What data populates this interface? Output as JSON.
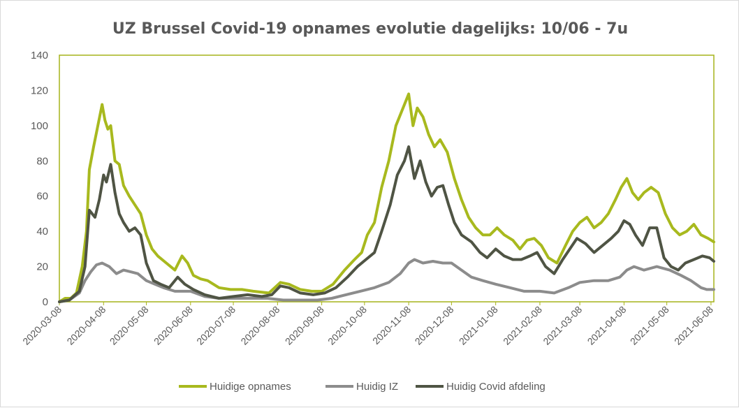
{
  "chart_data": {
    "type": "line",
    "title": "UZ Brussel Covid-19 opnames evolutie dagelijks: 10/06 - 7u",
    "xlabel": "",
    "ylabel": "",
    "x_range": [
      "2020-03-08",
      "2021-06-10"
    ],
    "ylim": [
      0,
      140
    ],
    "yticks": [
      0,
      20,
      40,
      60,
      80,
      100,
      120,
      140
    ],
    "xticks": [
      "2020-03-08",
      "2020-04-08",
      "2020-05-08",
      "2020-06-08",
      "2020-07-08",
      "2020-08-08",
      "2020-09-08",
      "2020-10-08",
      "2020-11-08",
      "2020-12-08",
      "2021-01-08",
      "2021-02-08",
      "2021-03-08",
      "2021-04-08",
      "2021-05-08",
      "2021-06-08"
    ],
    "grid": false,
    "legend_position": "bottom",
    "colors": {
      "plot_border": "#a6b31a",
      "axis_text": "#595959"
    },
    "series": [
      {
        "name": "Huidige opnames",
        "color": "#a8b91e",
        "points": [
          [
            "2020-03-08",
            0
          ],
          [
            "2020-03-12",
            2
          ],
          [
            "2020-03-16",
            2
          ],
          [
            "2020-03-20",
            5
          ],
          [
            "2020-03-24",
            20
          ],
          [
            "2020-03-27",
            40
          ],
          [
            "2020-03-29",
            75
          ],
          [
            "2020-04-01",
            88
          ],
          [
            "2020-04-04",
            100
          ],
          [
            "2020-04-07",
            112
          ],
          [
            "2020-04-09",
            103
          ],
          [
            "2020-04-11",
            98
          ],
          [
            "2020-04-13",
            100
          ],
          [
            "2020-04-16",
            80
          ],
          [
            "2020-04-19",
            78
          ],
          [
            "2020-04-22",
            66
          ],
          [
            "2020-04-26",
            60
          ],
          [
            "2020-04-30",
            55
          ],
          [
            "2020-05-04",
            50
          ],
          [
            "2020-05-08",
            38
          ],
          [
            "2020-05-12",
            30
          ],
          [
            "2020-05-16",
            26
          ],
          [
            "2020-05-22",
            22
          ],
          [
            "2020-05-28",
            18
          ],
          [
            "2020-06-02",
            26
          ],
          [
            "2020-06-06",
            22
          ],
          [
            "2020-06-10",
            15
          ],
          [
            "2020-06-15",
            13
          ],
          [
            "2020-06-20",
            12
          ],
          [
            "2020-06-28",
            8
          ],
          [
            "2020-07-06",
            7
          ],
          [
            "2020-07-14",
            7
          ],
          [
            "2020-07-22",
            6
          ],
          [
            "2020-08-02",
            5
          ],
          [
            "2020-08-10",
            11
          ],
          [
            "2020-08-16",
            10
          ],
          [
            "2020-08-24",
            7
          ],
          [
            "2020-09-01",
            6
          ],
          [
            "2020-09-08",
            6
          ],
          [
            "2020-09-16",
            10
          ],
          [
            "2020-09-24",
            18
          ],
          [
            "2020-10-01",
            24
          ],
          [
            "2020-10-06",
            28
          ],
          [
            "2020-10-10",
            38
          ],
          [
            "2020-10-15",
            45
          ],
          [
            "2020-10-20",
            65
          ],
          [
            "2020-10-25",
            80
          ],
          [
            "2020-10-30",
            100
          ],
          [
            "2020-11-04",
            110
          ],
          [
            "2020-11-08",
            118
          ],
          [
            "2020-11-11",
            100
          ],
          [
            "2020-11-14",
            110
          ],
          [
            "2020-11-18",
            105
          ],
          [
            "2020-11-22",
            95
          ],
          [
            "2020-11-26",
            88
          ],
          [
            "2020-11-30",
            92
          ],
          [
            "2020-12-05",
            85
          ],
          [
            "2020-12-10",
            70
          ],
          [
            "2020-12-15",
            58
          ],
          [
            "2020-12-20",
            48
          ],
          [
            "2020-12-25",
            42
          ],
          [
            "2020-12-30",
            38
          ],
          [
            "2021-01-04",
            38
          ],
          [
            "2021-01-09",
            42
          ],
          [
            "2021-01-14",
            38
          ],
          [
            "2021-01-20",
            35
          ],
          [
            "2021-01-25",
            30
          ],
          [
            "2021-01-30",
            35
          ],
          [
            "2021-02-04",
            36
          ],
          [
            "2021-02-09",
            32
          ],
          [
            "2021-02-14",
            25
          ],
          [
            "2021-02-20",
            22
          ],
          [
            "2021-02-26",
            32
          ],
          [
            "2021-03-03",
            40
          ],
          [
            "2021-03-08",
            45
          ],
          [
            "2021-03-13",
            48
          ],
          [
            "2021-03-18",
            42
          ],
          [
            "2021-03-23",
            45
          ],
          [
            "2021-03-28",
            50
          ],
          [
            "2021-04-02",
            58
          ],
          [
            "2021-04-06",
            65
          ],
          [
            "2021-04-10",
            70
          ],
          [
            "2021-04-14",
            62
          ],
          [
            "2021-04-18",
            58
          ],
          [
            "2021-04-22",
            62
          ],
          [
            "2021-04-27",
            65
          ],
          [
            "2021-05-02",
            62
          ],
          [
            "2021-05-07",
            50
          ],
          [
            "2021-05-12",
            42
          ],
          [
            "2021-05-17",
            38
          ],
          [
            "2021-05-22",
            40
          ],
          [
            "2021-05-27",
            44
          ],
          [
            "2021-06-01",
            38
          ],
          [
            "2021-06-06",
            36
          ],
          [
            "2021-06-10",
            34
          ]
        ]
      },
      {
        "name": "Huidig IZ",
        "color": "#8c8c8c",
        "points": [
          [
            "2020-03-08",
            0
          ],
          [
            "2020-03-15",
            1
          ],
          [
            "2020-03-22",
            5
          ],
          [
            "2020-03-26",
            12
          ],
          [
            "2020-03-30",
            17
          ],
          [
            "2020-04-03",
            21
          ],
          [
            "2020-04-07",
            22
          ],
          [
            "2020-04-12",
            20
          ],
          [
            "2020-04-17",
            16
          ],
          [
            "2020-04-22",
            18
          ],
          [
            "2020-04-27",
            17
          ],
          [
            "2020-05-02",
            16
          ],
          [
            "2020-05-08",
            12
          ],
          [
            "2020-05-14",
            10
          ],
          [
            "2020-05-20",
            8
          ],
          [
            "2020-05-28",
            6
          ],
          [
            "2020-06-08",
            6
          ],
          [
            "2020-06-18",
            3
          ],
          [
            "2020-06-28",
            2
          ],
          [
            "2020-07-08",
            2
          ],
          [
            "2020-07-20",
            2
          ],
          [
            "2020-08-01",
            2
          ],
          [
            "2020-08-12",
            1
          ],
          [
            "2020-08-24",
            1
          ],
          [
            "2020-09-05",
            1
          ],
          [
            "2020-09-15",
            2
          ],
          [
            "2020-09-25",
            4
          ],
          [
            "2020-10-05",
            6
          ],
          [
            "2020-10-15",
            8
          ],
          [
            "2020-10-25",
            11
          ],
          [
            "2020-11-02",
            16
          ],
          [
            "2020-11-08",
            22
          ],
          [
            "2020-11-12",
            24
          ],
          [
            "2020-11-18",
            22
          ],
          [
            "2020-11-25",
            23
          ],
          [
            "2020-12-02",
            22
          ],
          [
            "2020-12-08",
            22
          ],
          [
            "2020-12-15",
            18
          ],
          [
            "2020-12-22",
            14
          ],
          [
            "2020-12-30",
            12
          ],
          [
            "2021-01-08",
            10
          ],
          [
            "2021-01-18",
            8
          ],
          [
            "2021-01-28",
            6
          ],
          [
            "2021-02-08",
            6
          ],
          [
            "2021-02-18",
            5
          ],
          [
            "2021-02-28",
            8
          ],
          [
            "2021-03-08",
            11
          ],
          [
            "2021-03-18",
            12
          ],
          [
            "2021-03-28",
            12
          ],
          [
            "2021-04-05",
            14
          ],
          [
            "2021-04-10",
            18
          ],
          [
            "2021-04-15",
            20
          ],
          [
            "2021-04-22",
            18
          ],
          [
            "2021-05-01",
            20
          ],
          [
            "2021-05-10",
            18
          ],
          [
            "2021-05-18",
            15
          ],
          [
            "2021-05-25",
            12
          ],
          [
            "2021-06-01",
            8
          ],
          [
            "2021-06-05",
            7
          ],
          [
            "2021-06-10",
            7
          ]
        ]
      },
      {
        "name": "Huidig Covid afdeling",
        "color": "#4f5444",
        "points": [
          [
            "2020-03-08",
            0
          ],
          [
            "2020-03-15",
            1
          ],
          [
            "2020-03-22",
            6
          ],
          [
            "2020-03-26",
            20
          ],
          [
            "2020-03-29",
            52
          ],
          [
            "2020-04-02",
            48
          ],
          [
            "2020-04-05",
            58
          ],
          [
            "2020-04-08",
            72
          ],
          [
            "2020-04-10",
            68
          ],
          [
            "2020-04-13",
            78
          ],
          [
            "2020-04-16",
            62
          ],
          [
            "2020-04-19",
            50
          ],
          [
            "2020-04-22",
            45
          ],
          [
            "2020-04-26",
            40
          ],
          [
            "2020-04-30",
            42
          ],
          [
            "2020-05-04",
            38
          ],
          [
            "2020-05-08",
            22
          ],
          [
            "2020-05-13",
            12
          ],
          [
            "2020-05-18",
            10
          ],
          [
            "2020-05-24",
            8
          ],
          [
            "2020-05-30",
            14
          ],
          [
            "2020-06-04",
            10
          ],
          [
            "2020-06-10",
            7
          ],
          [
            "2020-06-18",
            4
          ],
          [
            "2020-06-28",
            2
          ],
          [
            "2020-07-08",
            3
          ],
          [
            "2020-07-18",
            4
          ],
          [
            "2020-07-28",
            3
          ],
          [
            "2020-08-04",
            4
          ],
          [
            "2020-08-10",
            9
          ],
          [
            "2020-08-16",
            8
          ],
          [
            "2020-08-24",
            5
          ],
          [
            "2020-09-02",
            4
          ],
          [
            "2020-09-10",
            5
          ],
          [
            "2020-09-18",
            8
          ],
          [
            "2020-09-26",
            14
          ],
          [
            "2020-10-03",
            20
          ],
          [
            "2020-10-09",
            24
          ],
          [
            "2020-10-15",
            28
          ],
          [
            "2020-10-20",
            40
          ],
          [
            "2020-10-26",
            55
          ],
          [
            "2020-10-31",
            72
          ],
          [
            "2020-11-05",
            80
          ],
          [
            "2020-11-08",
            88
          ],
          [
            "2020-11-12",
            70
          ],
          [
            "2020-11-16",
            80
          ],
          [
            "2020-11-20",
            68
          ],
          [
            "2020-11-24",
            60
          ],
          [
            "2020-11-28",
            65
          ],
          [
            "2020-12-02",
            66
          ],
          [
            "2020-12-06",
            55
          ],
          [
            "2020-12-10",
            45
          ],
          [
            "2020-12-15",
            38
          ],
          [
            "2020-12-22",
            34
          ],
          [
            "2020-12-28",
            28
          ],
          [
            "2021-01-02",
            25
          ],
          [
            "2021-01-08",
            30
          ],
          [
            "2021-01-14",
            26
          ],
          [
            "2021-01-20",
            24
          ],
          [
            "2021-01-26",
            24
          ],
          [
            "2021-02-01",
            26
          ],
          [
            "2021-02-06",
            28
          ],
          [
            "2021-02-12",
            20
          ],
          [
            "2021-02-18",
            16
          ],
          [
            "2021-02-24",
            24
          ],
          [
            "2021-03-01",
            30
          ],
          [
            "2021-03-06",
            36
          ],
          [
            "2021-03-12",
            33
          ],
          [
            "2021-03-18",
            28
          ],
          [
            "2021-03-24",
            32
          ],
          [
            "2021-03-30",
            36
          ],
          [
            "2021-04-04",
            40
          ],
          [
            "2021-04-08",
            46
          ],
          [
            "2021-04-12",
            44
          ],
          [
            "2021-04-16",
            38
          ],
          [
            "2021-04-21",
            32
          ],
          [
            "2021-04-26",
            42
          ],
          [
            "2021-05-01",
            42
          ],
          [
            "2021-05-06",
            25
          ],
          [
            "2021-05-11",
            20
          ],
          [
            "2021-05-16",
            18
          ],
          [
            "2021-05-21",
            22
          ],
          [
            "2021-05-27",
            24
          ],
          [
            "2021-06-02",
            26
          ],
          [
            "2021-06-07",
            25
          ],
          [
            "2021-06-10",
            23
          ]
        ]
      }
    ]
  }
}
